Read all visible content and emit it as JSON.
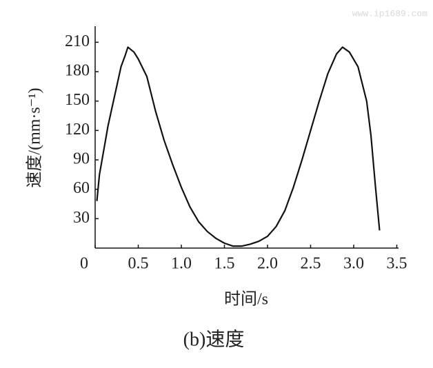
{
  "watermark": "www.ip1689.com",
  "caption": "(b)速度",
  "chart_data": {
    "type": "line",
    "xlabel": "时间/s",
    "ylabel": "速度/(mm·s⁻¹)",
    "x": [
      0.02,
      0.05,
      0.1,
      0.15,
      0.2,
      0.25,
      0.3,
      0.35,
      0.38,
      0.45,
      0.5,
      0.6,
      0.7,
      0.8,
      0.9,
      1.0,
      1.1,
      1.2,
      1.3,
      1.4,
      1.5,
      1.6,
      1.7,
      1.8,
      1.9,
      2.0,
      2.1,
      2.2,
      2.3,
      2.4,
      2.5,
      2.6,
      2.7,
      2.8,
      2.87,
      2.95,
      3.05,
      3.15,
      3.2,
      3.25,
      3.3
    ],
    "series": [
      {
        "name": "速度",
        "color": "#111111",
        "values": [
          48,
          75,
          100,
          125,
          145,
          165,
          185,
          197,
          205,
          200,
          193,
          175,
          140,
          110,
          85,
          62,
          42,
          27,
          17,
          10,
          5,
          2,
          2,
          4,
          7,
          12,
          22,
          38,
          62,
          90,
          120,
          150,
          178,
          198,
          205,
          200,
          185,
          150,
          115,
          65,
          18
        ]
      }
    ],
    "xlim": [
      0,
      3.5
    ],
    "ylim": [
      0,
      225
    ],
    "xticks": [
      0,
      0.5,
      {
        "value": 1,
        "label": "1.0"
      },
      1.5,
      {
        "value": 2,
        "label": "2.0"
      },
      2.5,
      {
        "value": 3,
        "label": "3.0"
      },
      3.5
    ],
    "yticks": [
      30,
      60,
      90,
      120,
      150,
      180,
      210
    ],
    "grid": false
  }
}
